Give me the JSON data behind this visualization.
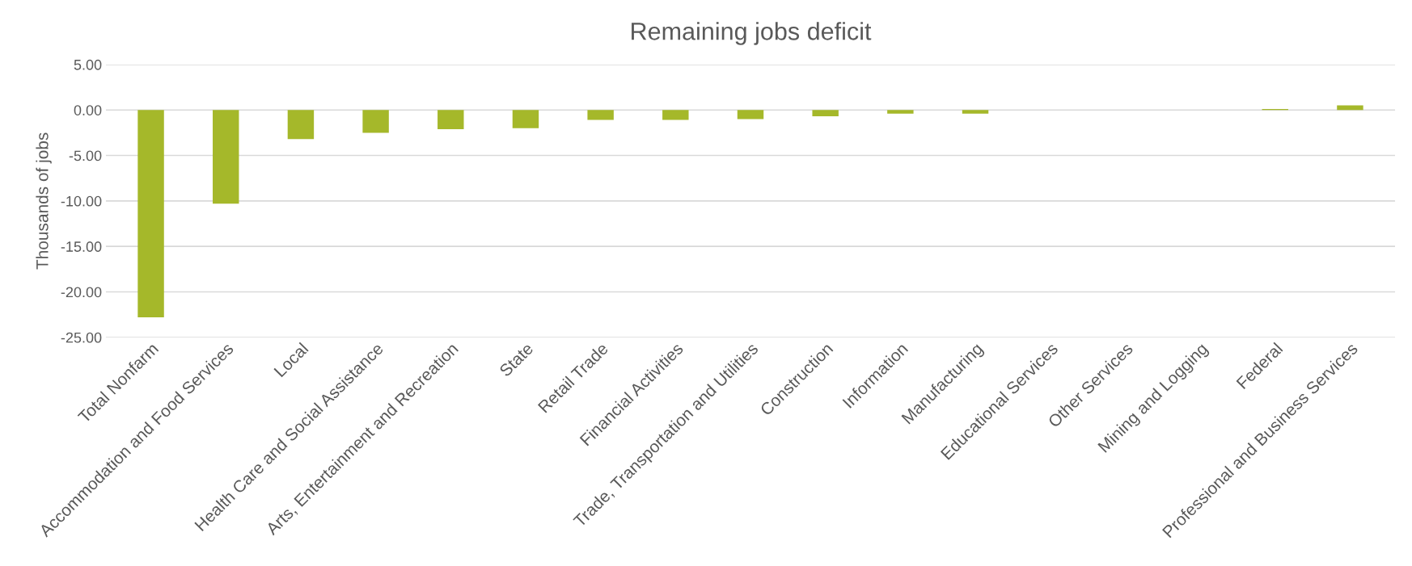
{
  "chart_data": {
    "type": "bar",
    "title": "Remaining jobs deficit",
    "ylabel": "Thousands of jobs",
    "categories": [
      "Total Nonfarm",
      "Accommodation and Food Services",
      "Local",
      "Health Care and Social Assistance",
      "Arts, Entertainment and Recreation",
      "State",
      "Retail Trade",
      "Financial Activities",
      "Trade, Transportation and Utilities",
      "Construction",
      "Information",
      "Manufacturing",
      "Educational Services",
      "Other Services",
      "Mining and Logging",
      "Federal",
      "Professional and Business Services"
    ],
    "values": [
      -22.8,
      -10.3,
      -3.2,
      -2.5,
      -2.1,
      -2.0,
      -1.1,
      -1.1,
      -1.0,
      -0.7,
      -0.4,
      -0.4,
      0,
      0,
      0,
      0.1,
      0.5
    ],
    "color": "#a5b82a",
    "ylim": [
      -25,
      5
    ],
    "yticks": [
      {
        "value": 5,
        "label": "5.00"
      },
      {
        "value": 0,
        "label": "0.00"
      },
      {
        "value": -5,
        "label": "-5.00"
      },
      {
        "value": -10,
        "label": "-10.00"
      },
      {
        "value": -15,
        "label": "-15.00"
      },
      {
        "value": -20,
        "label": "-20.00"
      },
      {
        "value": -25,
        "label": "-25.00"
      }
    ],
    "grid": "y",
    "legend": false
  }
}
